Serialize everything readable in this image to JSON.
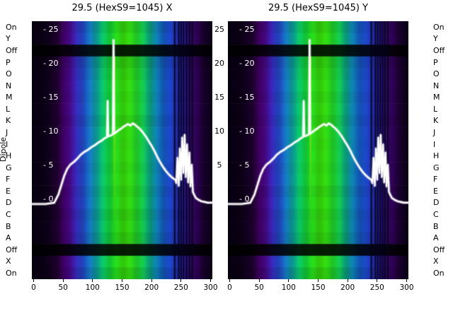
{
  "figure": {
    "background_color": "#ffffff",
    "left_axis_label": "Dipole",
    "plots": [
      {
        "title": "29.5 (HexS9=1045) X"
      },
      {
        "title": "29.5 (HexS9=1045) Y"
      }
    ],
    "row_labels": [
      "On",
      "Y",
      "Off",
      "P",
      "O",
      "N",
      "M",
      "L",
      "K",
      "J",
      "I",
      "H",
      "G",
      "F",
      "E",
      "D",
      "C",
      "B",
      "A",
      "Off",
      "X",
      "On"
    ],
    "inner_y_tick_labels": [
      "- 25",
      "- 20",
      "- 15",
      "- 10",
      "- 5",
      "- 0"
    ],
    "inner_y_tick_values": [
      25,
      20,
      15,
      10,
      5,
      0
    ],
    "between_y_tick_labels": [
      "25",
      "20",
      "15",
      "10",
      "5"
    ],
    "between_y_tick_values": [
      25,
      20,
      15,
      10,
      5
    ],
    "x_tick_labels": [
      "0",
      "50",
      "100",
      "150",
      "200",
      "250",
      "300"
    ],
    "x_tick_values": [
      0,
      50,
      100,
      150,
      200,
      250,
      300
    ]
  },
  "chart_data": [
    {
      "type": "heatmap",
      "title": "29.5 (HexS9=1045) X",
      "x_range": [
        -3,
        303
      ],
      "y_range": [
        -11.7,
        26.4
      ],
      "x_ticks": [
        0,
        50,
        100,
        150,
        200,
        250,
        300
      ],
      "y_ticks": [
        0,
        5,
        10,
        15,
        20,
        25
      ],
      "row_categories": [
        "On",
        "Y",
        "Off",
        "P",
        "O",
        "N",
        "M",
        "L",
        "K",
        "J",
        "I",
        "H",
        "G",
        "F",
        "E",
        "D",
        "C",
        "B",
        "A",
        "Off",
        "X",
        "On"
      ],
      "bands": [
        {
          "label": "top-bright",
          "rows": 2,
          "brightness": [
            0.93,
            1.0
          ]
        },
        {
          "label": "off-gap",
          "rows": 1,
          "brightness": [
            0.13
          ]
        },
        {
          "label": "main",
          "rows": 16,
          "brightness": [
            0.88,
            0.95,
            1.0,
            0.97,
            1.0,
            0.93,
            1.0,
            0.98,
            1.0,
            0.96,
            1.0,
            0.94,
            0.99,
            0.92,
            0.97,
            0.9
          ]
        },
        {
          "label": "off-gap",
          "rows": 1,
          "brightness": [
            0.13
          ]
        },
        {
          "label": "bottom-bright",
          "rows": 2,
          "brightness": [
            1.0,
            0.9
          ]
        }
      ],
      "colormap_stops": [
        [
          0.0,
          "#06000e"
        ],
        [
          0.055,
          "#0b0016"
        ],
        [
          0.1,
          "#12001f"
        ],
        [
          0.145,
          "#250038"
        ],
        [
          0.175,
          "#3b005e"
        ],
        [
          0.205,
          "#470883"
        ],
        [
          0.235,
          "#3a1ea8"
        ],
        [
          0.265,
          "#2b3bc2"
        ],
        [
          0.295,
          "#1f5bd2"
        ],
        [
          0.325,
          "#157fc0"
        ],
        [
          0.355,
          "#0d9e9e"
        ],
        [
          0.39,
          "#0ab767"
        ],
        [
          0.43,
          "#12c937"
        ],
        [
          0.47,
          "#27d71a"
        ],
        [
          0.51,
          "#39e00c"
        ],
        [
          0.55,
          "#2fd713"
        ],
        [
          0.6,
          "#18c437"
        ],
        [
          0.645,
          "#0ba86f"
        ],
        [
          0.685,
          "#0d87ab"
        ],
        [
          0.725,
          "#1463c8"
        ],
        [
          0.765,
          "#1c44c4"
        ],
        [
          0.8,
          "#2330ab"
        ],
        [
          0.84,
          "#291b90"
        ],
        [
          0.88,
          "#360a70"
        ],
        [
          0.92,
          "#2d0050"
        ],
        [
          0.96,
          "#18002c"
        ],
        [
          1.0,
          "#090014"
        ]
      ],
      "dark_line_x": [
        239,
        246,
        250,
        254,
        259,
        264,
        269
      ],
      "bright_line": {
        "x": 137,
        "color_top": "#c8f000",
        "color_bottom": "#18c818",
        "row_start": 3,
        "row_end": 19
      },
      "line_series": {
        "name": "beam profile",
        "color": "#ffffff",
        "x": [
          -3,
          20,
          35,
          42,
          47,
          52,
          57,
          62,
          68,
          74,
          80,
          86,
          92,
          98,
          104,
          110,
          116,
          120,
          124.5,
          125.5,
          126.5,
          130,
          134.5,
          135.5,
          136.5,
          140,
          144,
          148,
          152,
          156,
          160,
          164,
          168,
          172,
          176,
          180,
          185,
          190,
          195,
          200,
          205,
          210,
          215,
          220,
          225,
          230,
          235,
          240,
          242,
          244,
          246,
          248,
          250,
          252,
          254,
          256,
          258,
          260,
          262,
          264,
          266,
          268,
          270,
          272,
          275,
          280,
          285,
          290,
          295,
          300,
          303
        ],
        "y": [
          -0.6,
          -0.6,
          -0.4,
          0.8,
          2.2,
          3.6,
          4.6,
          5.2,
          5.6,
          6.1,
          6.7,
          7.1,
          7.4,
          7.8,
          8.1,
          8.5,
          8.8,
          9.1,
          9.3,
          14.6,
          9.4,
          9.5,
          9.7,
          23.6,
          9.8,
          10.0,
          10.3,
          10.5,
          10.8,
          11.0,
          11.2,
          11.0,
          11.3,
          11.1,
          10.8,
          10.5,
          10.0,
          9.4,
          8.7,
          8.0,
          7.2,
          6.3,
          5.5,
          4.8,
          4.2,
          3.7,
          3.3,
          3.0,
          2.5,
          6.2,
          2.1,
          7.6,
          3.0,
          9.2,
          4.0,
          9.6,
          3.4,
          8.2,
          2.6,
          7.0,
          2.0,
          5.2,
          1.2,
          0.8,
          0.3,
          0.0,
          -0.2,
          -0.3,
          -0.4,
          -0.4,
          -0.4
        ]
      }
    },
    {
      "type": "heatmap",
      "title": "29.5 (HexS9=1045) Y",
      "x_range": [
        -3,
        303
      ],
      "y_range": [
        -11.7,
        26.4
      ],
      "x_ticks": [
        0,
        50,
        100,
        150,
        200,
        250,
        300
      ],
      "y_ticks": [
        0,
        5,
        10,
        15,
        20,
        25
      ],
      "row_categories": [
        "On",
        "Y",
        "Off",
        "P",
        "O",
        "N",
        "M",
        "L",
        "K",
        "J",
        "I",
        "H",
        "G",
        "F",
        "E",
        "D",
        "C",
        "B",
        "A",
        "Off",
        "X",
        "On"
      ],
      "bands": [
        {
          "label": "top-bright",
          "rows": 2,
          "brightness": [
            0.93,
            1.0
          ]
        },
        {
          "label": "off-gap",
          "rows": 1,
          "brightness": [
            0.13
          ]
        },
        {
          "label": "main",
          "rows": 16,
          "brightness": [
            0.9,
            0.96,
            1.0,
            0.95,
            1.0,
            0.94,
            1.0,
            0.98,
            1.0,
            0.97,
            1.0,
            0.93,
            0.99,
            0.93,
            0.96,
            0.9
          ]
        },
        {
          "label": "off-gap",
          "rows": 1,
          "brightness": [
            0.13
          ]
        },
        {
          "label": "bottom-bright",
          "rows": 2,
          "brightness": [
            1.0,
            0.9
          ]
        }
      ],
      "colormap_stops": [
        [
          0.0,
          "#06000e"
        ],
        [
          0.055,
          "#0b0016"
        ],
        [
          0.1,
          "#12001f"
        ],
        [
          0.145,
          "#250038"
        ],
        [
          0.175,
          "#3b005e"
        ],
        [
          0.205,
          "#470883"
        ],
        [
          0.235,
          "#3a1ea8"
        ],
        [
          0.265,
          "#2b3bc2"
        ],
        [
          0.295,
          "#1f5bd2"
        ],
        [
          0.325,
          "#157fc0"
        ],
        [
          0.355,
          "#0d9e9e"
        ],
        [
          0.39,
          "#0ab767"
        ],
        [
          0.43,
          "#12c937"
        ],
        [
          0.47,
          "#27d71a"
        ],
        [
          0.51,
          "#39e00c"
        ],
        [
          0.55,
          "#2fd713"
        ],
        [
          0.6,
          "#18c437"
        ],
        [
          0.645,
          "#0ba86f"
        ],
        [
          0.685,
          "#0d87ab"
        ],
        [
          0.725,
          "#1463c8"
        ],
        [
          0.765,
          "#1c44c4"
        ],
        [
          0.8,
          "#2330ab"
        ],
        [
          0.84,
          "#291b90"
        ],
        [
          0.88,
          "#360a70"
        ],
        [
          0.92,
          "#2d0050"
        ],
        [
          0.96,
          "#18002c"
        ],
        [
          1.0,
          "#090014"
        ]
      ],
      "dark_line_x": [
        240,
        247,
        251,
        255,
        259,
        263,
        268
      ],
      "bright_line": {
        "x": 137,
        "color_top": "#c8f000",
        "color_bottom": "#18c818",
        "row_start": 3,
        "row_end": 19
      },
      "line_series": {
        "name": "beam profile",
        "color": "#ffffff",
        "x": [
          -3,
          20,
          35,
          42,
          47,
          52,
          57,
          62,
          68,
          74,
          80,
          86,
          92,
          98,
          104,
          110,
          116,
          120,
          124.5,
          125.5,
          126.5,
          130,
          134.5,
          135.5,
          136.5,
          140,
          144,
          148,
          152,
          156,
          160,
          164,
          168,
          172,
          176,
          180,
          185,
          190,
          195,
          200,
          205,
          210,
          215,
          220,
          225,
          230,
          235,
          240,
          242,
          244,
          246,
          248,
          250,
          252,
          254,
          256,
          258,
          260,
          262,
          264,
          266,
          268,
          270,
          272,
          275,
          280,
          285,
          290,
          295,
          300,
          303
        ],
        "y": [
          -0.6,
          -0.6,
          -0.4,
          0.8,
          2.2,
          3.6,
          4.6,
          5.2,
          5.6,
          6.1,
          6.7,
          7.1,
          7.4,
          7.8,
          8.1,
          8.5,
          8.8,
          9.1,
          9.3,
          14.6,
          9.4,
          9.5,
          9.7,
          23.6,
          9.8,
          10.0,
          10.3,
          10.5,
          10.8,
          11.0,
          11.2,
          11.0,
          11.3,
          11.1,
          10.8,
          10.5,
          10.0,
          9.4,
          8.7,
          8.0,
          7.2,
          6.3,
          5.5,
          4.8,
          4.2,
          3.7,
          3.3,
          3.0,
          2.5,
          6.2,
          2.1,
          7.6,
          3.0,
          9.2,
          4.0,
          9.6,
          3.4,
          8.2,
          2.6,
          7.0,
          2.0,
          5.2,
          1.2,
          0.8,
          0.3,
          0.0,
          -0.2,
          -0.3,
          -0.4,
          -0.4,
          -0.4
        ]
      }
    }
  ]
}
